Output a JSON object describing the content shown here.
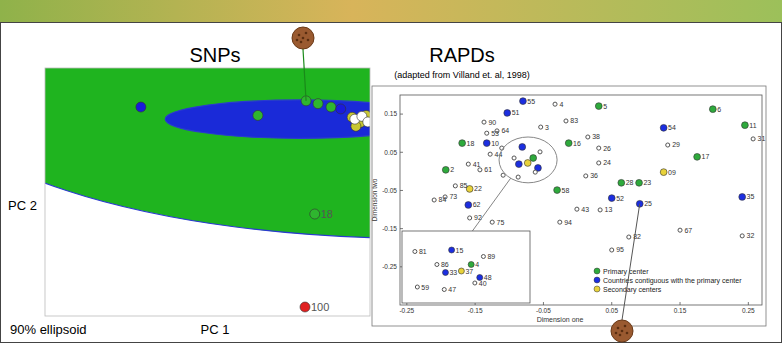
{
  "chart_data": [
    {
      "type": "scatter",
      "title": "SNPs",
      "x_label": "PC 1",
      "y_label": "PC 2",
      "annotation": "90% ellipsoid",
      "xlim": [
        -4,
        2
      ],
      "ylim": [
        -6,
        2
      ],
      "tick_labels": false,
      "ellipses": [
        {
          "center": [
            2.92,
            1.79
          ],
          "radii": [
            9.23,
            5.29
          ],
          "color": "#1fb41f"
        },
        {
          "center": [
            0.71,
            0.35
          ],
          "radii": [
            2.49,
            0.62
          ],
          "color": "#1a2ad8"
        }
      ],
      "series": [
        {
          "color": "#2fb52f",
          "marker": "circle",
          "x": [
            -0.07,
            0.82,
            1.04,
            1.28,
            0.98
          ],
          "values": [
            0.47,
            0.94,
            0.85,
            0.74,
            -2.71
          ],
          "labels": [
            null,
            null,
            null,
            null,
            "18"
          ]
        },
        {
          "color": "#1a1adc",
          "marker": "circle",
          "x": [
            -2.23,
            1.46
          ],
          "values": [
            0.74,
            0.68
          ]
        },
        {
          "color": "#c8c832",
          "marker": "circle",
          "x": [
            1.67,
            1.82,
            1.93,
            1.74
          ],
          "values": [
            0.41,
            0.24,
            0.47,
            0.12
          ]
        },
        {
          "color": "#ffffff",
          "marker": "circle",
          "x": [
            1.72,
            1.85,
            1.96
          ],
          "values": [
            0.35,
            0.44,
            0.26
          ]
        },
        {
          "color": "#e02020",
          "marker": "circle",
          "x": [
            0.8
          ],
          "values": [
            -5.71
          ],
          "labels": [
            "100"
          ]
        }
      ]
    },
    {
      "type": "scatter",
      "title": "RAPDs",
      "subtitle": "(adapted from Villand et. al, 1998)",
      "x_label": "Dimension one",
      "y_label": "Dimension two",
      "xlim": [
        -0.26,
        0.27
      ],
      "ylim": [
        -0.35,
        0.2
      ],
      "xticks": [
        -0.25,
        -0.15,
        -0.05,
        0.05,
        0.15,
        0.25
      ],
      "yticks": [
        -0.25,
        -0.15,
        -0.05,
        0.05,
        0.15
      ],
      "legend": "lower right",
      "inset": {
        "xlim": [
          -0.115,
          -0.03
        ],
        "ylim": [
          -0.03,
          0.09
        ]
      },
      "series": [
        {
          "name": "Primary center",
          "color": "#2eaa3c",
          "marker": "circle",
          "x": [
            -0.169,
            -0.193,
            0.031,
            0.198,
            0.245,
            0.175,
            -0.013,
            -0.03,
            0.064,
            0.09,
            -0.065
          ],
          "values": [
            0.074,
            0.004,
            0.171,
            0.163,
            0.121,
            0.038,
            0.074,
            -0.049,
            -0.03,
            -0.03,
            0.035
          ],
          "labels": [
            "18",
            "2",
            "5",
            "6",
            "11",
            "17",
            "16",
            "58",
            "28",
            "23",
            "4"
          ]
        },
        {
          "name": "Countries contiguous with the primary center",
          "color": "#1c2ee0",
          "marker": "circle",
          "x": [
            -0.08,
            -0.103,
            -0.133,
            -0.081,
            0.05,
            0.091,
            0.241,
            0.126,
            -0.086,
            -0.058,
            -0.16
          ],
          "values": [
            0.184,
            0.153,
            0.074,
            0.064,
            -0.07,
            -0.085,
            -0.067,
            0.114,
            0.019,
            0.009,
            -0.088
          ],
          "labels": [
            "55",
            "51",
            "10",
            "15",
            "52",
            "25",
            "35",
            "54",
            "33",
            "48",
            "62"
          ]
        },
        {
          "name": "Secondary centers",
          "color": "#e8d23a",
          "marker": "circle",
          "x": [
            0.126,
            -0.158,
            -0.073
          ],
          "values": [
            -0.002,
            -0.046,
            0.022
          ],
          "labels": [
            "09",
            "22",
            "37"
          ]
        },
        {
          "color": "#555555",
          "marker": "open",
          "x": [
            -0.133,
            -0.118,
            -0.137,
            -0.111,
            -0.128,
            -0.16,
            -0.143,
            -0.179,
            -0.194,
            -0.158,
            -0.125,
            -0.109,
            -0.054,
            -0.033,
            -0.017,
            0.015,
            0.031,
            0.031,
            0.012,
            -0.001,
            0.033,
            0.075,
            0.15,
            0.241,
            0.257,
            0.132,
            0.05,
            -0.026,
            -0.21,
            -0.087,
            -0.062,
            -0.093,
            -0.055
          ],
          "values": [
            0.1,
            0.106,
            0.129,
            0.061,
            0.045,
            0.019,
            0.004,
            -0.038,
            -0.067,
            -0.122,
            -0.133,
            -0.01,
            0.116,
            0.176,
            0.132,
            0.09,
            0.061,
            0.022,
            -0.012,
            -0.099,
            -0.101,
            -0.172,
            -0.154,
            -0.169,
            0.085,
            0.069,
            -0.206,
            -0.133,
            -0.075,
            -0.015,
            -0.002,
            0.035,
            0.051
          ],
          "labels": [
            "53",
            "64",
            "90",
            "81",
            "44",
            "41",
            "61",
            "85",
            "73",
            "92",
            "75",
            "59",
            "3",
            "4",
            "83",
            "38",
            "26",
            "24",
            "36",
            "43",
            "13",
            "82",
            "67",
            "32",
            "31",
            "29",
            "95",
            "94",
            "84",
            "47",
            "40",
            "86",
            "89"
          ]
        }
      ]
    }
  ]
}
